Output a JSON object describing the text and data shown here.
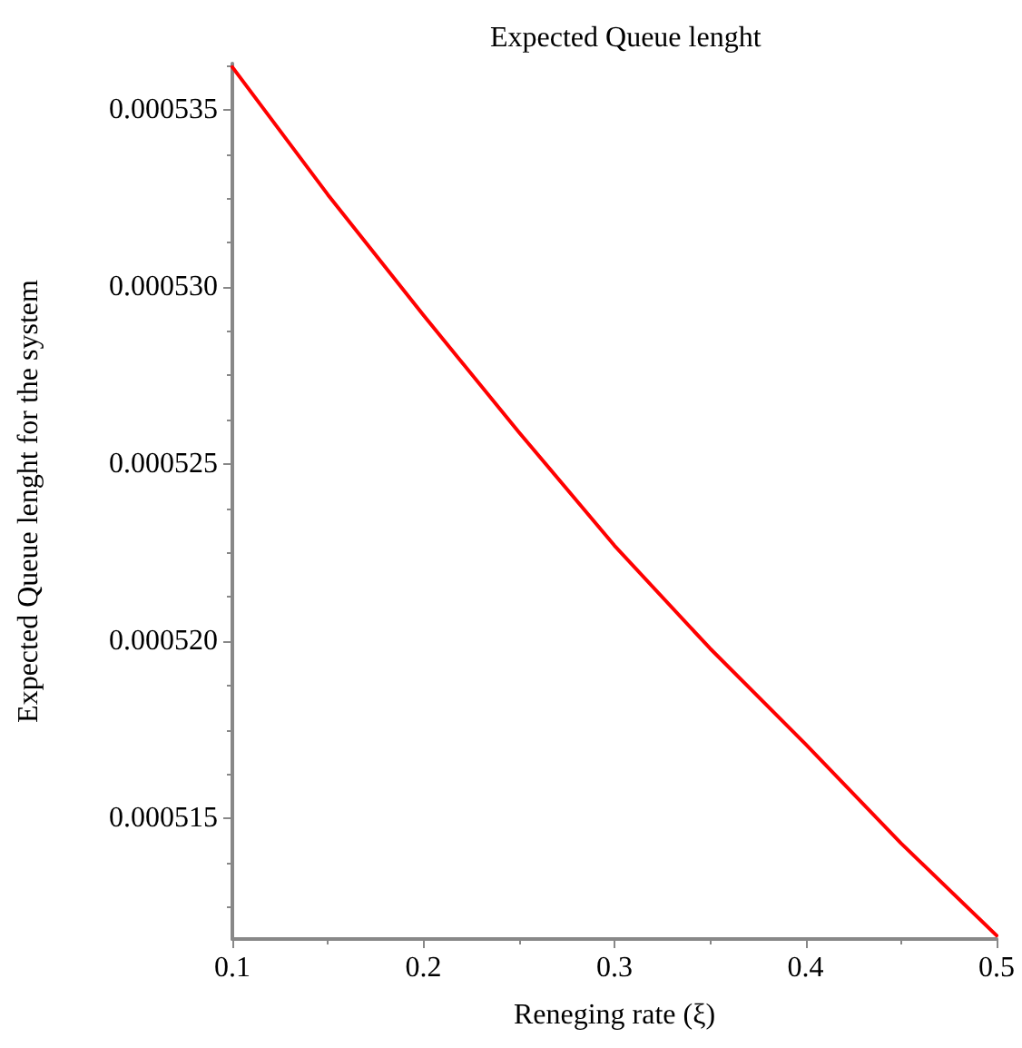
{
  "chart_data": {
    "type": "line",
    "title": "Expected Queue lenght",
    "xlabel": "Reneging rate (ξ)",
    "ylabel": "Expected Queue lenght for the system",
    "x": [
      0.1,
      0.15,
      0.2,
      0.25,
      0.3,
      0.35,
      0.4,
      0.45,
      0.5
    ],
    "series": [
      {
        "color": "#ff0000",
        "values": [
          0.0005362,
          0.0005326,
          0.0005292,
          0.0005259,
          0.0005227,
          0.0005198,
          0.0005171,
          0.0005143,
          0.0005117
        ]
      }
    ],
    "xlim": [
      0.1,
      0.5
    ],
    "xticks": [
      0.1,
      0.2,
      0.3,
      0.4,
      0.5
    ],
    "ylim": [
      0.0005116,
      0.0005363
    ],
    "yticks": [
      0.000515,
      {
        "value": 0.00052,
        "label": "0.000520"
      },
      0.000525,
      {
        "value": 0.00053,
        "label": "0.000530"
      },
      0.000535
    ],
    "grid": false,
    "marker": "none",
    "line_style": "solid"
  }
}
